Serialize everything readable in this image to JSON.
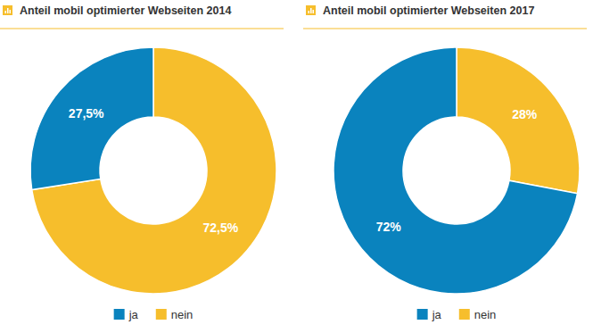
{
  "chart_data": [
    {
      "type": "pie",
      "title": "Anteil mobil optimierter Webseiten 2014",
      "categories": [
        "ja",
        "nein"
      ],
      "values": [
        27.5,
        72.5
      ],
      "value_labels": [
        "27,5%",
        "72,5%"
      ],
      "colors": [
        "#0a83be",
        "#f6be2c"
      ],
      "data_labels": true,
      "legend": "bottom"
    },
    {
      "type": "pie",
      "title": "Anteil mobil optimierter Webseiten 2017",
      "categories": [
        "ja",
        "nein"
      ],
      "values": [
        72,
        28
      ],
      "value_labels": [
        "72%",
        "28%"
      ],
      "colors": [
        "#0a83be",
        "#f6be2c"
      ],
      "data_labels": true,
      "legend": "bottom"
    }
  ]
}
